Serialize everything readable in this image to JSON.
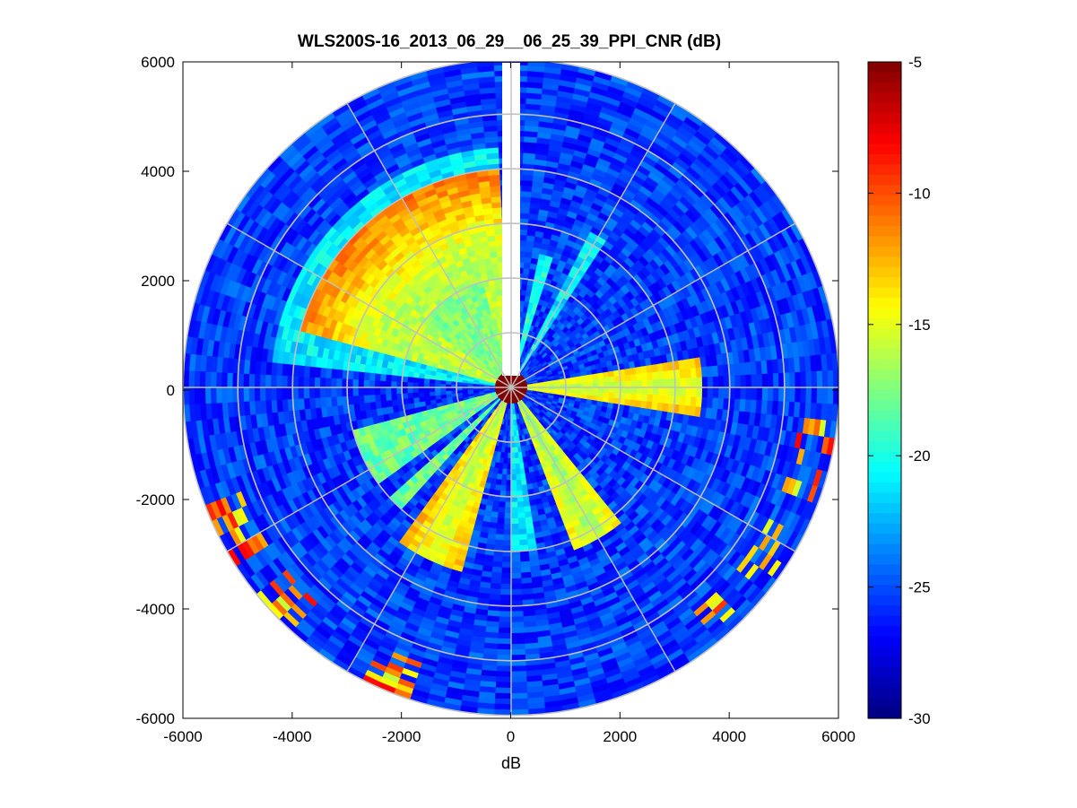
{
  "chart_data": {
    "type": "heatmap",
    "subtype": "polar-ppi",
    "title": "WLS200S-16_2013_06_29__06_25_39_PPI_CNR (dB)",
    "xlabel": "dB",
    "ylabel": "",
    "xlim": [
      -6000,
      6000
    ],
    "ylim": [
      -6000,
      6000
    ],
    "x_ticks": [
      "-6000",
      "-4000",
      "-2000",
      "0",
      "2000",
      "4000",
      "6000"
    ],
    "y_ticks": [
      "6000",
      "4000",
      "2000",
      "0",
      "-2000",
      "-4000",
      "-6000"
    ],
    "max_range": 6000,
    "range_rings": [
      1000,
      2000,
      3000,
      4000,
      5000,
      6000
    ],
    "spoke_step_deg": 30,
    "colorbar": {
      "colormap": "jet",
      "clim": [
        -30,
        -5
      ],
      "ticks": [
        "-5",
        "-10",
        "-15",
        "-20",
        "-25",
        "-30"
      ]
    },
    "missing_sector_deg": [
      -1.5,
      1.5
    ],
    "features": [
      {
        "label": "near-range return",
        "range": [
          0,
          350
        ],
        "value": -5
      },
      {
        "label": "strong sector NW",
        "az": [
          285,
          358
        ],
        "range": [
          350,
          4000
        ],
        "value": -15
      },
      {
        "label": "strong sector E",
        "az": [
          80,
          100
        ],
        "range": [
          400,
          3500
        ],
        "value": -17
      },
      {
        "label": "strong beam SSW",
        "az": [
          195,
          215
        ],
        "range": [
          400,
          3500
        ],
        "value": -17
      },
      {
        "label": "strong beam SE",
        "az": [
          140,
          160
        ],
        "range": [
          400,
          3200
        ],
        "value": -18
      },
      {
        "label": "hot spots far range",
        "value": -8
      }
    ]
  }
}
